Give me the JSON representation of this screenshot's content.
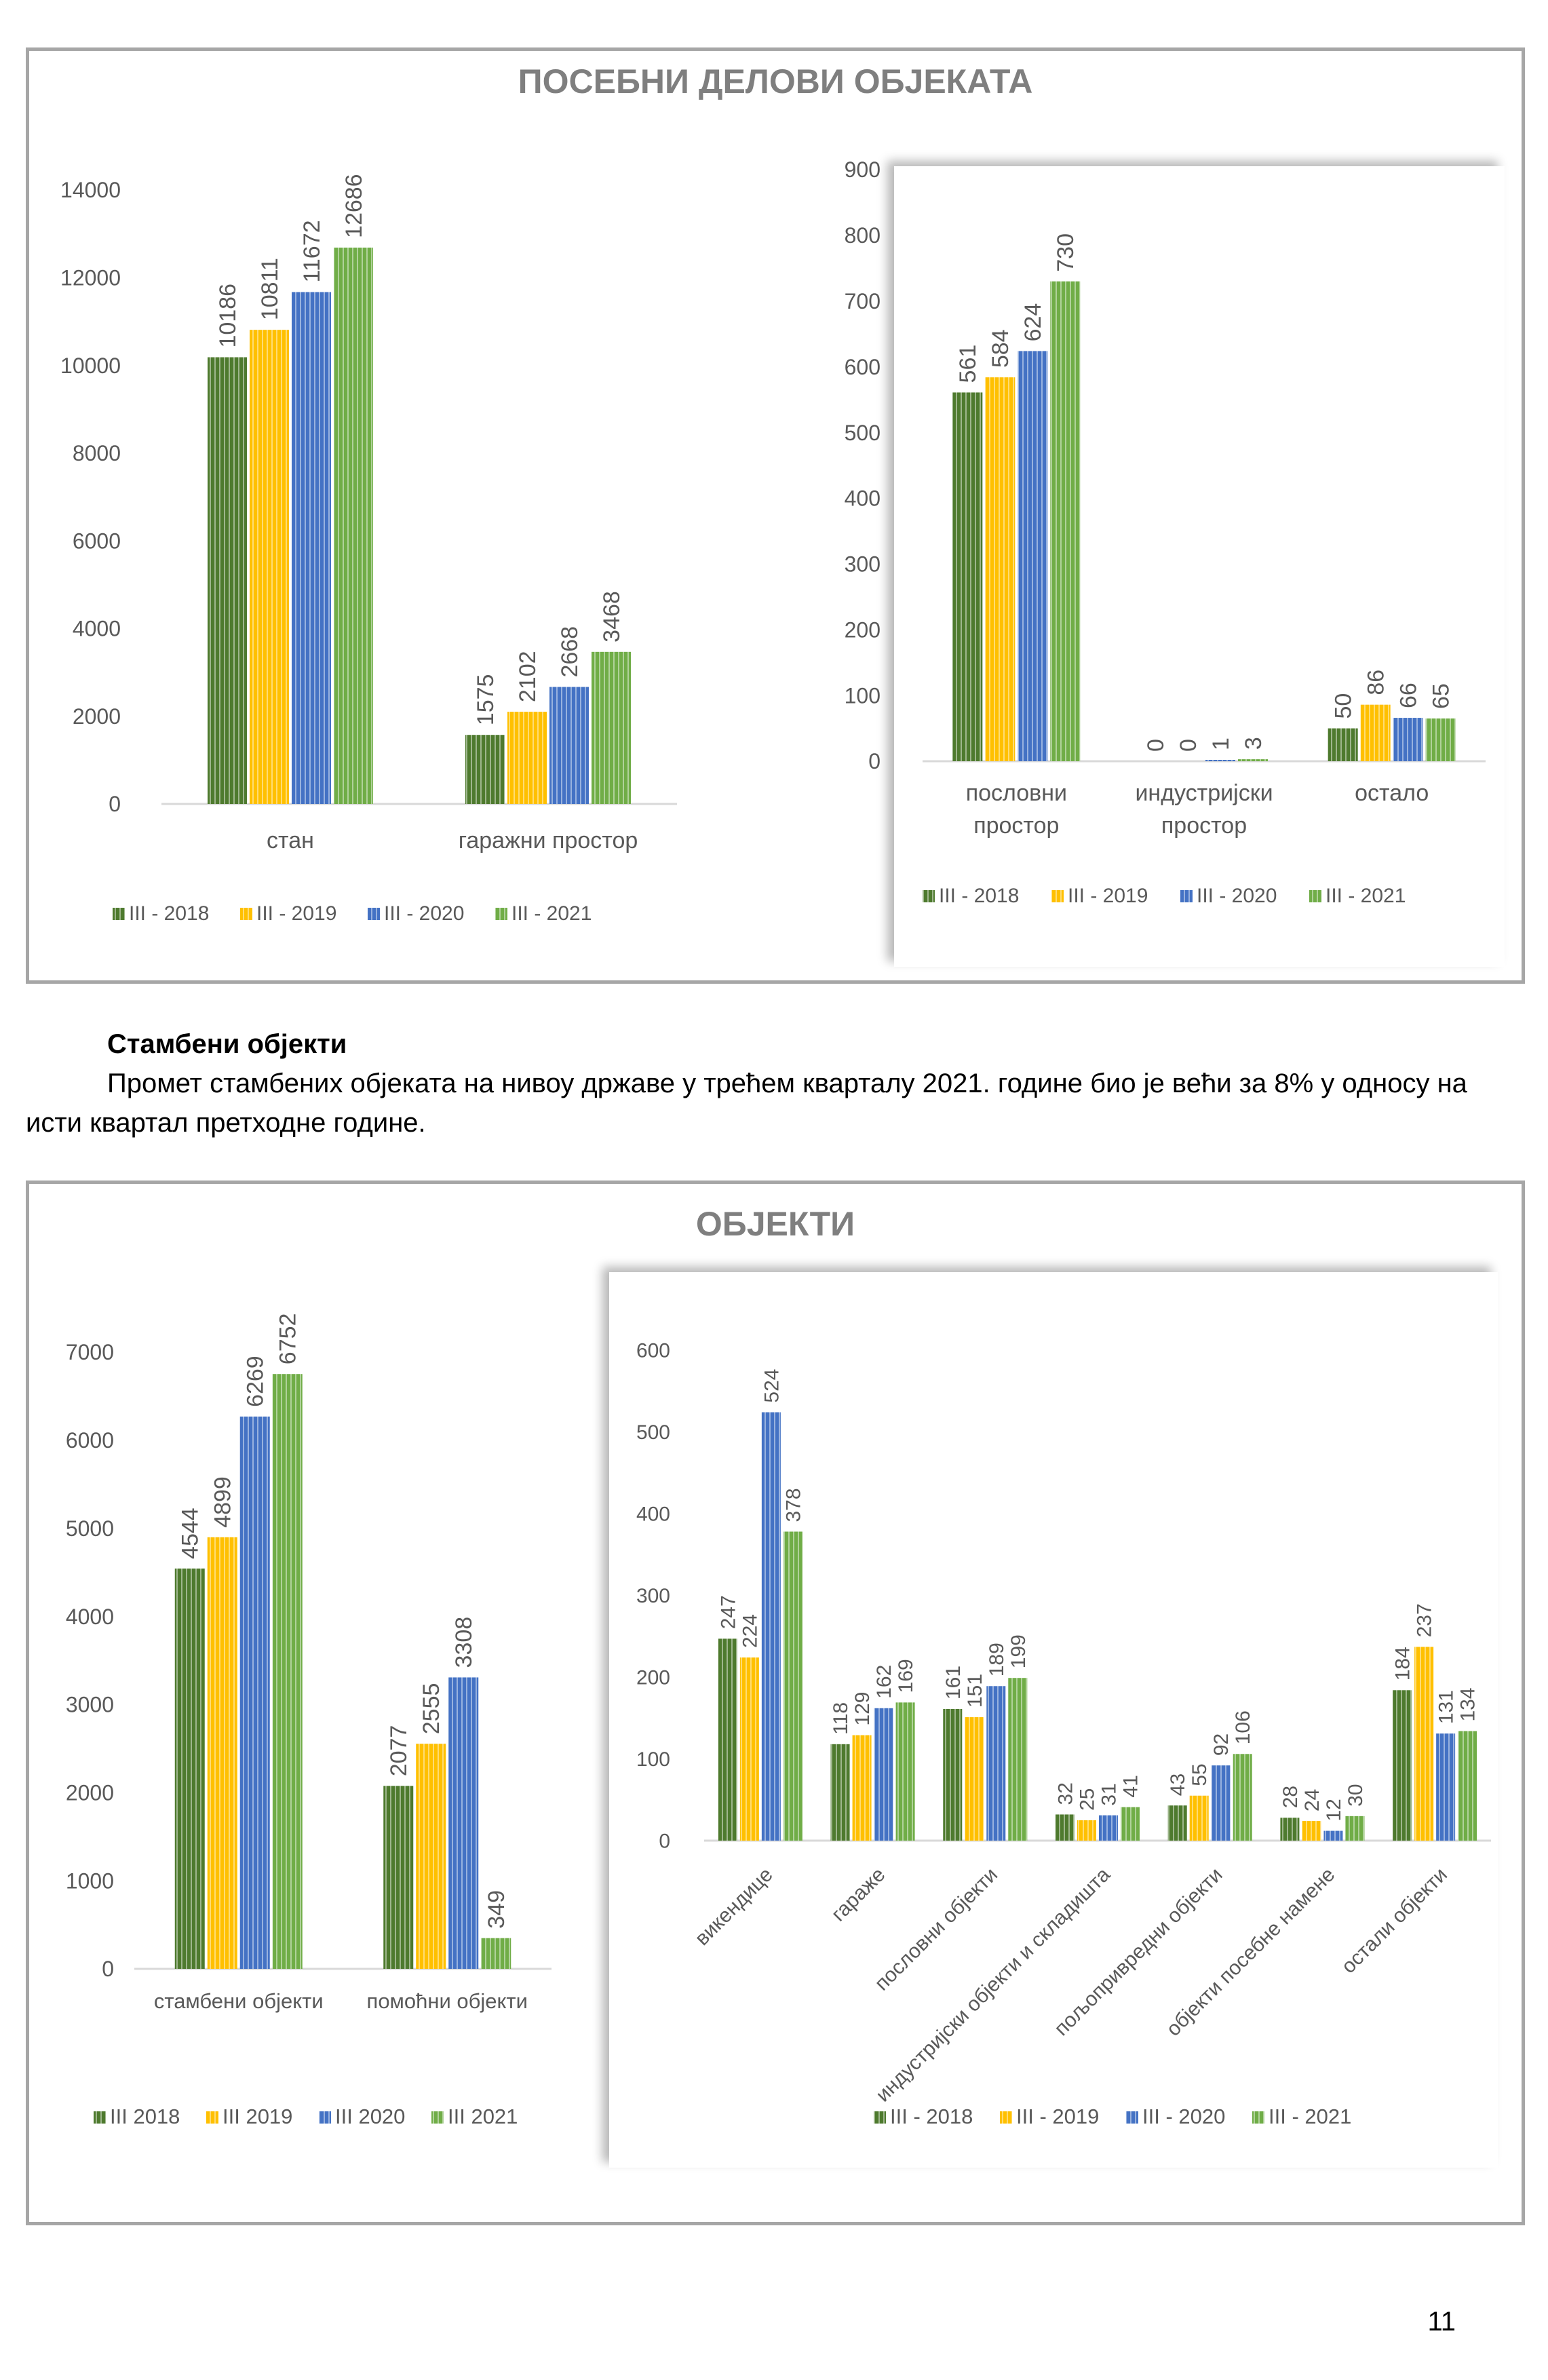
{
  "section1": {
    "title": "ПОСЕБНИ ДЕЛОВИ ОБЈЕКАТА"
  },
  "text": {
    "heading": "Стамбени објекти",
    "paragraph": "Промет стамбених објеката на нивоу државе у трећем кварталу 2021. године био је већи за 8% у односу на исти квартал претходне године."
  },
  "section2": {
    "title": "ОБЈЕКТИ"
  },
  "page_number": "11",
  "colors": {
    "2018": "#4e7a2e",
    "2019": "#ffc000",
    "2020": "#4472c4",
    "2021": "#70ad47",
    "frame": "#a6a6a6",
    "axis_text": "#595959"
  },
  "chart_data": [
    {
      "type": "bar",
      "categories": [
        "стан",
        "гаражни простор"
      ],
      "ylim": [
        0,
        14000
      ],
      "yticks": [
        0,
        2000,
        4000,
        6000,
        8000,
        10000,
        12000,
        14000
      ],
      "series": [
        {
          "name": "III - 2018",
          "values": [
            10186,
            1575
          ]
        },
        {
          "name": "III - 2019",
          "values": [
            10811,
            2102
          ]
        },
        {
          "name": "III - 2020",
          "values": [
            11672,
            2668
          ]
        },
        {
          "name": "III - 2021",
          "values": [
            12686,
            3468
          ]
        }
      ],
      "legend": "bottom"
    },
    {
      "type": "bar",
      "categories": [
        [
          "пословни",
          "простор"
        ],
        [
          "индустријски",
          "простор"
        ],
        [
          "остало"
        ]
      ],
      "ylim": [
        0,
        900
      ],
      "yticks": [
        0,
        100,
        200,
        300,
        400,
        500,
        600,
        700,
        800,
        900
      ],
      "series": [
        {
          "name": "III - 2018",
          "values": [
            561,
            0,
            50
          ]
        },
        {
          "name": "III - 2019",
          "values": [
            584,
            0,
            86
          ]
        },
        {
          "name": "III - 2020",
          "values": [
            624,
            1,
            66
          ]
        },
        {
          "name": "III - 2021",
          "values": [
            730,
            3,
            65
          ]
        }
      ],
      "legend": "bottom"
    },
    {
      "type": "bar",
      "categories": [
        "стамбени објекти",
        "помоћни објекти"
      ],
      "ylim": [
        0,
        7000
      ],
      "yticks": [
        0,
        1000,
        2000,
        3000,
        4000,
        5000,
        6000,
        7000
      ],
      "series": [
        {
          "name": "III 2018",
          "values": [
            4544,
            2077
          ]
        },
        {
          "name": "III 2019",
          "values": [
            4899,
            2555
          ]
        },
        {
          "name": "III 2020",
          "values": [
            6269,
            3308
          ]
        },
        {
          "name": "III 2021",
          "values": [
            6752,
            349
          ]
        }
      ],
      "legend": "bottom"
    },
    {
      "type": "bar",
      "categories": [
        "викендице",
        "гараже",
        "пословни објекти",
        "индустријски објекти и складишта",
        "пољопривредни објекти",
        "објекти посебне намене",
        "остали објекти"
      ],
      "ylim": [
        0,
        600
      ],
      "yticks": [
        0,
        100,
        200,
        300,
        400,
        500,
        600
      ],
      "series": [
        {
          "name": "III - 2018",
          "values": [
            247,
            118,
            161,
            32,
            43,
            28,
            184
          ]
        },
        {
          "name": "III - 2019",
          "values": [
            224,
            129,
            151,
            25,
            55,
            24,
            237
          ]
        },
        {
          "name": "III - 2020",
          "values": [
            524,
            162,
            189,
            31,
            92,
            12,
            131
          ]
        },
        {
          "name": "III - 2021",
          "values": [
            378,
            169,
            199,
            41,
            106,
            30,
            134
          ]
        }
      ],
      "legend": "bottom"
    }
  ]
}
